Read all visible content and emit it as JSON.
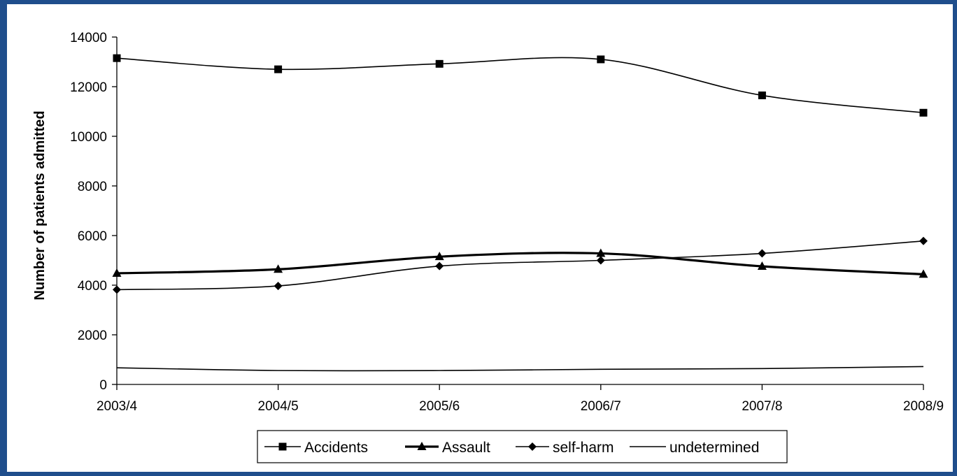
{
  "chart_data": {
    "type": "line",
    "title": "",
    "xlabel": "",
    "ylabel": "Number of patients admitted",
    "ylim": [
      0,
      14000
    ],
    "yticks": [
      0,
      2000,
      4000,
      6000,
      8000,
      10000,
      12000,
      14000
    ],
    "categories": [
      "2003/4",
      "2004/5",
      "2005/6",
      "2006/7",
      "2007/8",
      "2008/9"
    ],
    "grid": false,
    "legend_position": "bottom",
    "series": [
      {
        "name": "Accidents",
        "marker": "square",
        "width": 1.6,
        "values": [
          13150,
          12700,
          12920,
          13100,
          11650,
          10950
        ]
      },
      {
        "name": "Assault",
        "marker": "triangle",
        "width": 3.2,
        "values": [
          4480,
          4640,
          5150,
          5280,
          4760,
          4440
        ]
      },
      {
        "name": "self-harm",
        "marker": "diamond",
        "width": 1.6,
        "values": [
          3820,
          3970,
          4770,
          5000,
          5280,
          5780
        ]
      },
      {
        "name": "undetermined",
        "marker": "none",
        "width": 1.6,
        "values": [
          670,
          560,
          560,
          610,
          640,
          720
        ]
      }
    ]
  }
}
